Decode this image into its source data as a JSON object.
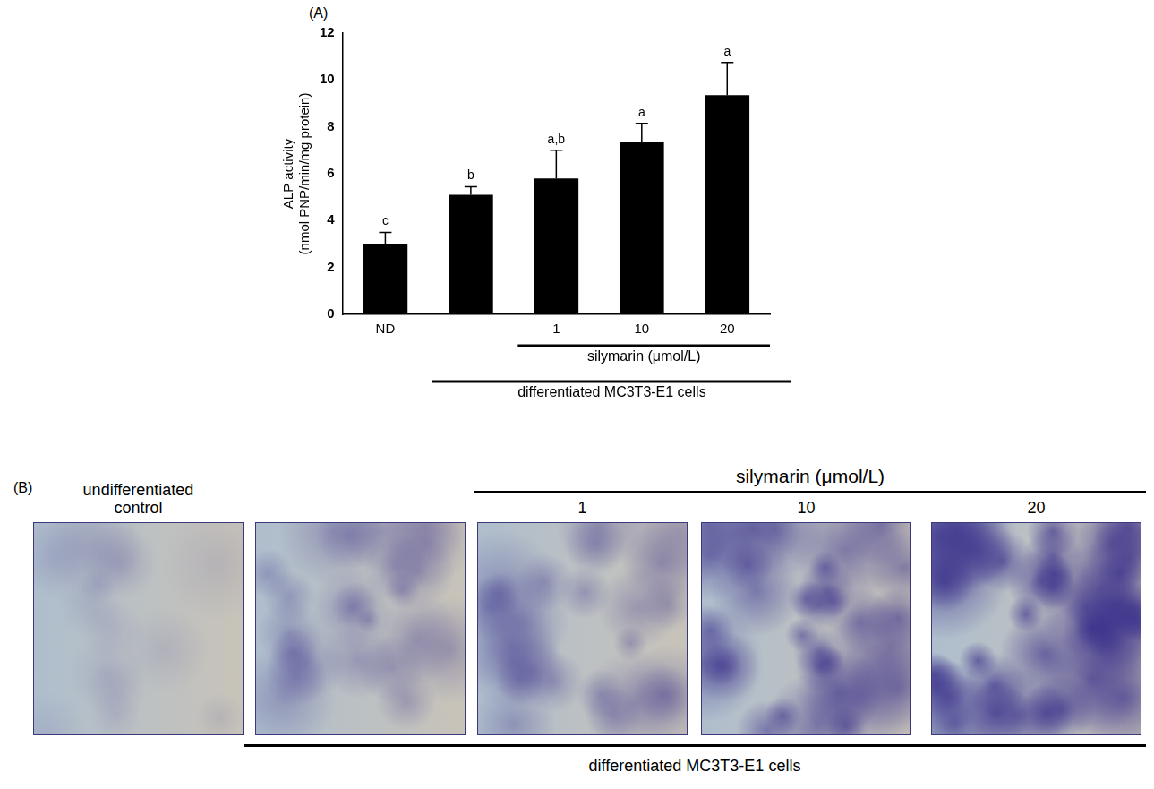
{
  "chart_data": {
    "type": "bar",
    "panel_label": "(A)",
    "categories": [
      "ND",
      null,
      "1",
      "10",
      "20"
    ],
    "values": [
      3.0,
      5.1,
      5.8,
      7.35,
      9.35
    ],
    "errors": [
      0.5,
      0.35,
      1.2,
      0.8,
      1.4
    ],
    "significance_letters": [
      "c",
      "b",
      "a,b",
      "a",
      "a"
    ],
    "color": "#000000",
    "y_label": [
      "ALP activity",
      "(nmol PNP/min/mg protein)"
    ],
    "ylim": [
      0,
      12
    ],
    "yticks": [
      0,
      2,
      4,
      6,
      8,
      10,
      12
    ],
    "grid": false,
    "group_labels": [
      {
        "text": "silymarin (μmol/L)",
        "span": [
          2,
          4
        ]
      },
      {
        "text": "differentiated MC3T3-E1 cells",
        "span": [
          1,
          4
        ]
      }
    ]
  },
  "panel_b": {
    "panel_label": "(B)",
    "columns": [
      "undifferentiated control",
      null,
      "1",
      "10",
      "20"
    ],
    "header": {
      "text": "silymarin (μmol/L)",
      "span": [
        2,
        4
      ]
    },
    "footer": {
      "text": "differentiated MC3T3-E1 cells",
      "span": [
        1,
        4
      ]
    }
  }
}
